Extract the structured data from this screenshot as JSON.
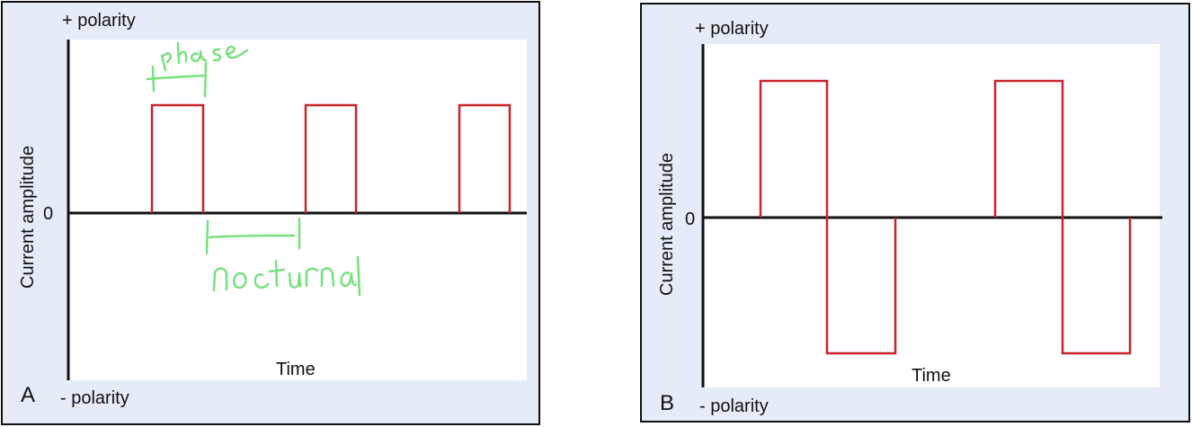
{
  "panel_a": {
    "letter": "A",
    "pos_polarity": "+ polarity",
    "neg_polarity": "- polarity",
    "zero": "0",
    "ylabel": "Current amplitude",
    "xlabel": "Time",
    "annotations": {
      "top": "phase",
      "bottom": "nocturnal"
    }
  },
  "panel_b": {
    "letter": "B",
    "pos_polarity": "+ polarity",
    "neg_polarity": "- polarity",
    "zero": "0",
    "ylabel": "Current amplitude",
    "xlabel": "Time"
  },
  "colors": {
    "waveform": "#c8242b",
    "annotation": "#79e07f",
    "axis": "#111111",
    "panel_bg": "#e6ecf7"
  },
  "waveforms": {
    "a": {
      "type": "monophasic pulsed current",
      "pulses": 3
    },
    "b": {
      "type": "biphasic pulsed current",
      "pulses": 2
    }
  }
}
